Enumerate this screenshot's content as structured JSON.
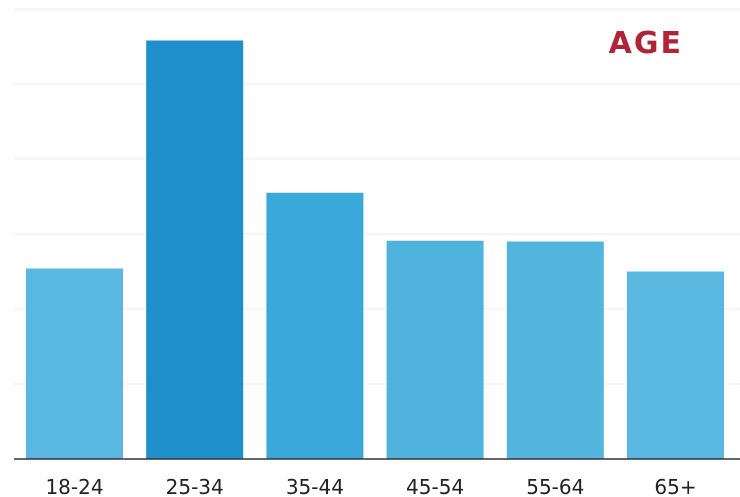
{
  "chart_data": {
    "type": "bar",
    "title": "AGE",
    "categories": [
      "18-24",
      "25-34",
      "35-44",
      "45-54",
      "55-64",
      "65+"
    ],
    "values": [
      25.4,
      55.8,
      35.5,
      29.1,
      29.0,
      25.0
    ],
    "xlabel": "",
    "ylabel": "",
    "ylim": [
      0,
      60
    ],
    "grid": true,
    "legend": "none",
    "colors": {
      "bars": [
        "#5ab8e0",
        "#1e8fcb",
        "#3aa9d9",
        "#50b3de",
        "#53b4de",
        "#5ab8e0"
      ],
      "title": "#b0243a",
      "grid": "#eeeeee",
      "axis": "#333333"
    }
  }
}
